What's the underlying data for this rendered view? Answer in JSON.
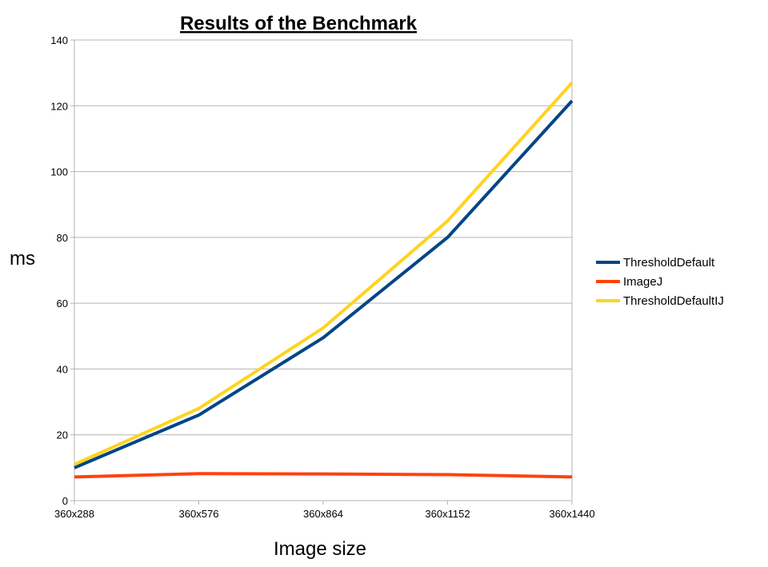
{
  "chart_data": {
    "type": "line",
    "title": "Results of the Benchmark",
    "xlabel": "Image size",
    "ylabel": "ms",
    "categories": [
      "360x288",
      "360x576",
      "360x864",
      "360x1152",
      "360x1440"
    ],
    "ylim": [
      0,
      140
    ],
    "yticks": [
      0,
      20,
      40,
      60,
      80,
      100,
      120,
      140
    ],
    "grid": true,
    "legend_position": "right",
    "series": [
      {
        "name": "ThresholdDefault",
        "color": "#004586",
        "values": [
          10,
          26,
          49.5,
          80,
          121.5
        ]
      },
      {
        "name": "ImageJ",
        "color": "#ff420e",
        "values": [
          7.2,
          8.2,
          8.1,
          7.9,
          7.2
        ]
      },
      {
        "name": "ThresholdDefaultIJ",
        "color": "#ffd320",
        "values": [
          11,
          28,
          52.5,
          85,
          127
        ]
      }
    ]
  }
}
